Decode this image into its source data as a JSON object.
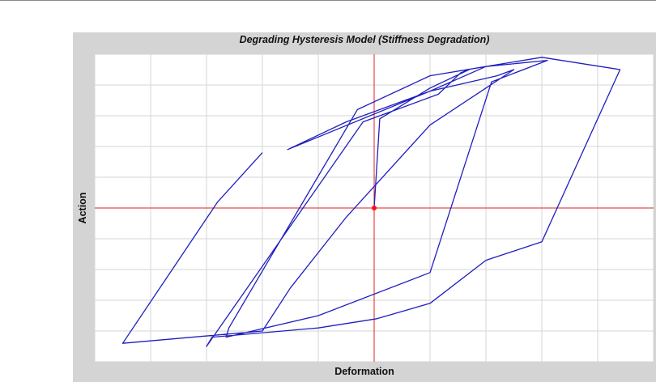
{
  "chart_data": {
    "type": "line",
    "title": "Degrading Hysteresis Model (Stiffness Degradation)",
    "xlabel": "Deformation",
    "ylabel": "Action",
    "xlim": [
      -5,
      5
    ],
    "ylim": [
      -5,
      5
    ],
    "grid": true,
    "axis_color": "#e02020",
    "origin_marker": {
      "x": 0,
      "y": 0,
      "color": "#ff1010"
    },
    "series": [
      {
        "color": "#1f1fbf",
        "x": [
          0,
          0.1,
          1.0,
          1.7,
          1.55,
          1.15,
          -0.2,
          -3.0,
          -2.9,
          -1.0,
          0.05,
          1.0,
          2.0,
          3.0,
          4.4,
          3.0,
          2.0,
          1.0,
          -0.3,
          -2.6,
          -2.65,
          -1.0,
          1.0,
          2.1,
          3.1,
          2.0,
          1.0,
          -1.55,
          -0.5,
          1.0,
          2.2,
          2.5,
          2.0,
          1.0,
          -0.5,
          -1.5,
          -2.0,
          -4.5,
          -2.8,
          -2.0
        ],
        "y": [
          0,
          2.9,
          3.9,
          4.5,
          4.4,
          3.7,
          2.8,
          -4.5,
          -4.2,
          -3.9,
          -3.6,
          -3.1,
          -1.7,
          -1.1,
          4.5,
          4.9,
          4.6,
          4.3,
          3.2,
          -3.9,
          -4.2,
          -3.5,
          -2.1,
          4.1,
          4.8,
          4.6,
          3.8,
          1.9,
          2.8,
          3.8,
          4.3,
          4.5,
          3.9,
          2.7,
          -0.3,
          -2.6,
          -4.0,
          -4.4,
          0.2,
          1.8
        ]
      }
    ]
  }
}
